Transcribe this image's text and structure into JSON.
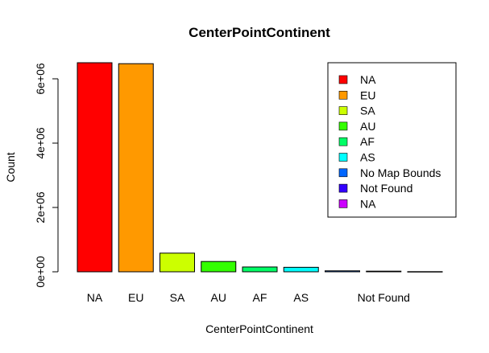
{
  "chart_data": {
    "type": "bar",
    "title": "CenterPointContinent",
    "xlabel": "CenterPointContinent",
    "ylabel": "Count",
    "categories": [
      "NA",
      "EU",
      "SA",
      "AU",
      "AF",
      "AS",
      "No Map Bounds",
      "Not Found",
      "NA"
    ],
    "tick_labels": [
      "NA",
      "EU",
      "SA",
      "AU",
      "AF",
      "AS",
      "",
      "Not Found",
      ""
    ],
    "values": [
      6500000,
      6470000,
      580000,
      320000,
      150000,
      140000,
      30000,
      20000,
      5000
    ],
    "colors": [
      "#FF0000",
      "#FF9900",
      "#CCFF00",
      "#33FF00",
      "#00FF66",
      "#00FFFF",
      "#0066FF",
      "#3300FF",
      "#CC00FF"
    ],
    "ylim": [
      0,
      6500000
    ],
    "yticks": [
      0,
      2000000,
      4000000,
      6000000
    ],
    "ytick_labels": [
      "0e+00",
      "2e+06",
      "4e+06",
      "6e+06"
    ],
    "grid": false,
    "legend": {
      "position": "top-right",
      "entries": [
        {
          "label": "NA",
          "color": "#FF0000"
        },
        {
          "label": "EU",
          "color": "#FF9900"
        },
        {
          "label": "SA",
          "color": "#CCFF00"
        },
        {
          "label": "AU",
          "color": "#33FF00"
        },
        {
          "label": "AF",
          "color": "#00FF66"
        },
        {
          "label": "AS",
          "color": "#00FFFF"
        },
        {
          "label": "No Map Bounds",
          "color": "#0066FF"
        },
        {
          "label": "Not Found",
          "color": "#3300FF"
        },
        {
          "label": "NA",
          "color": "#CC00FF"
        }
      ]
    }
  }
}
